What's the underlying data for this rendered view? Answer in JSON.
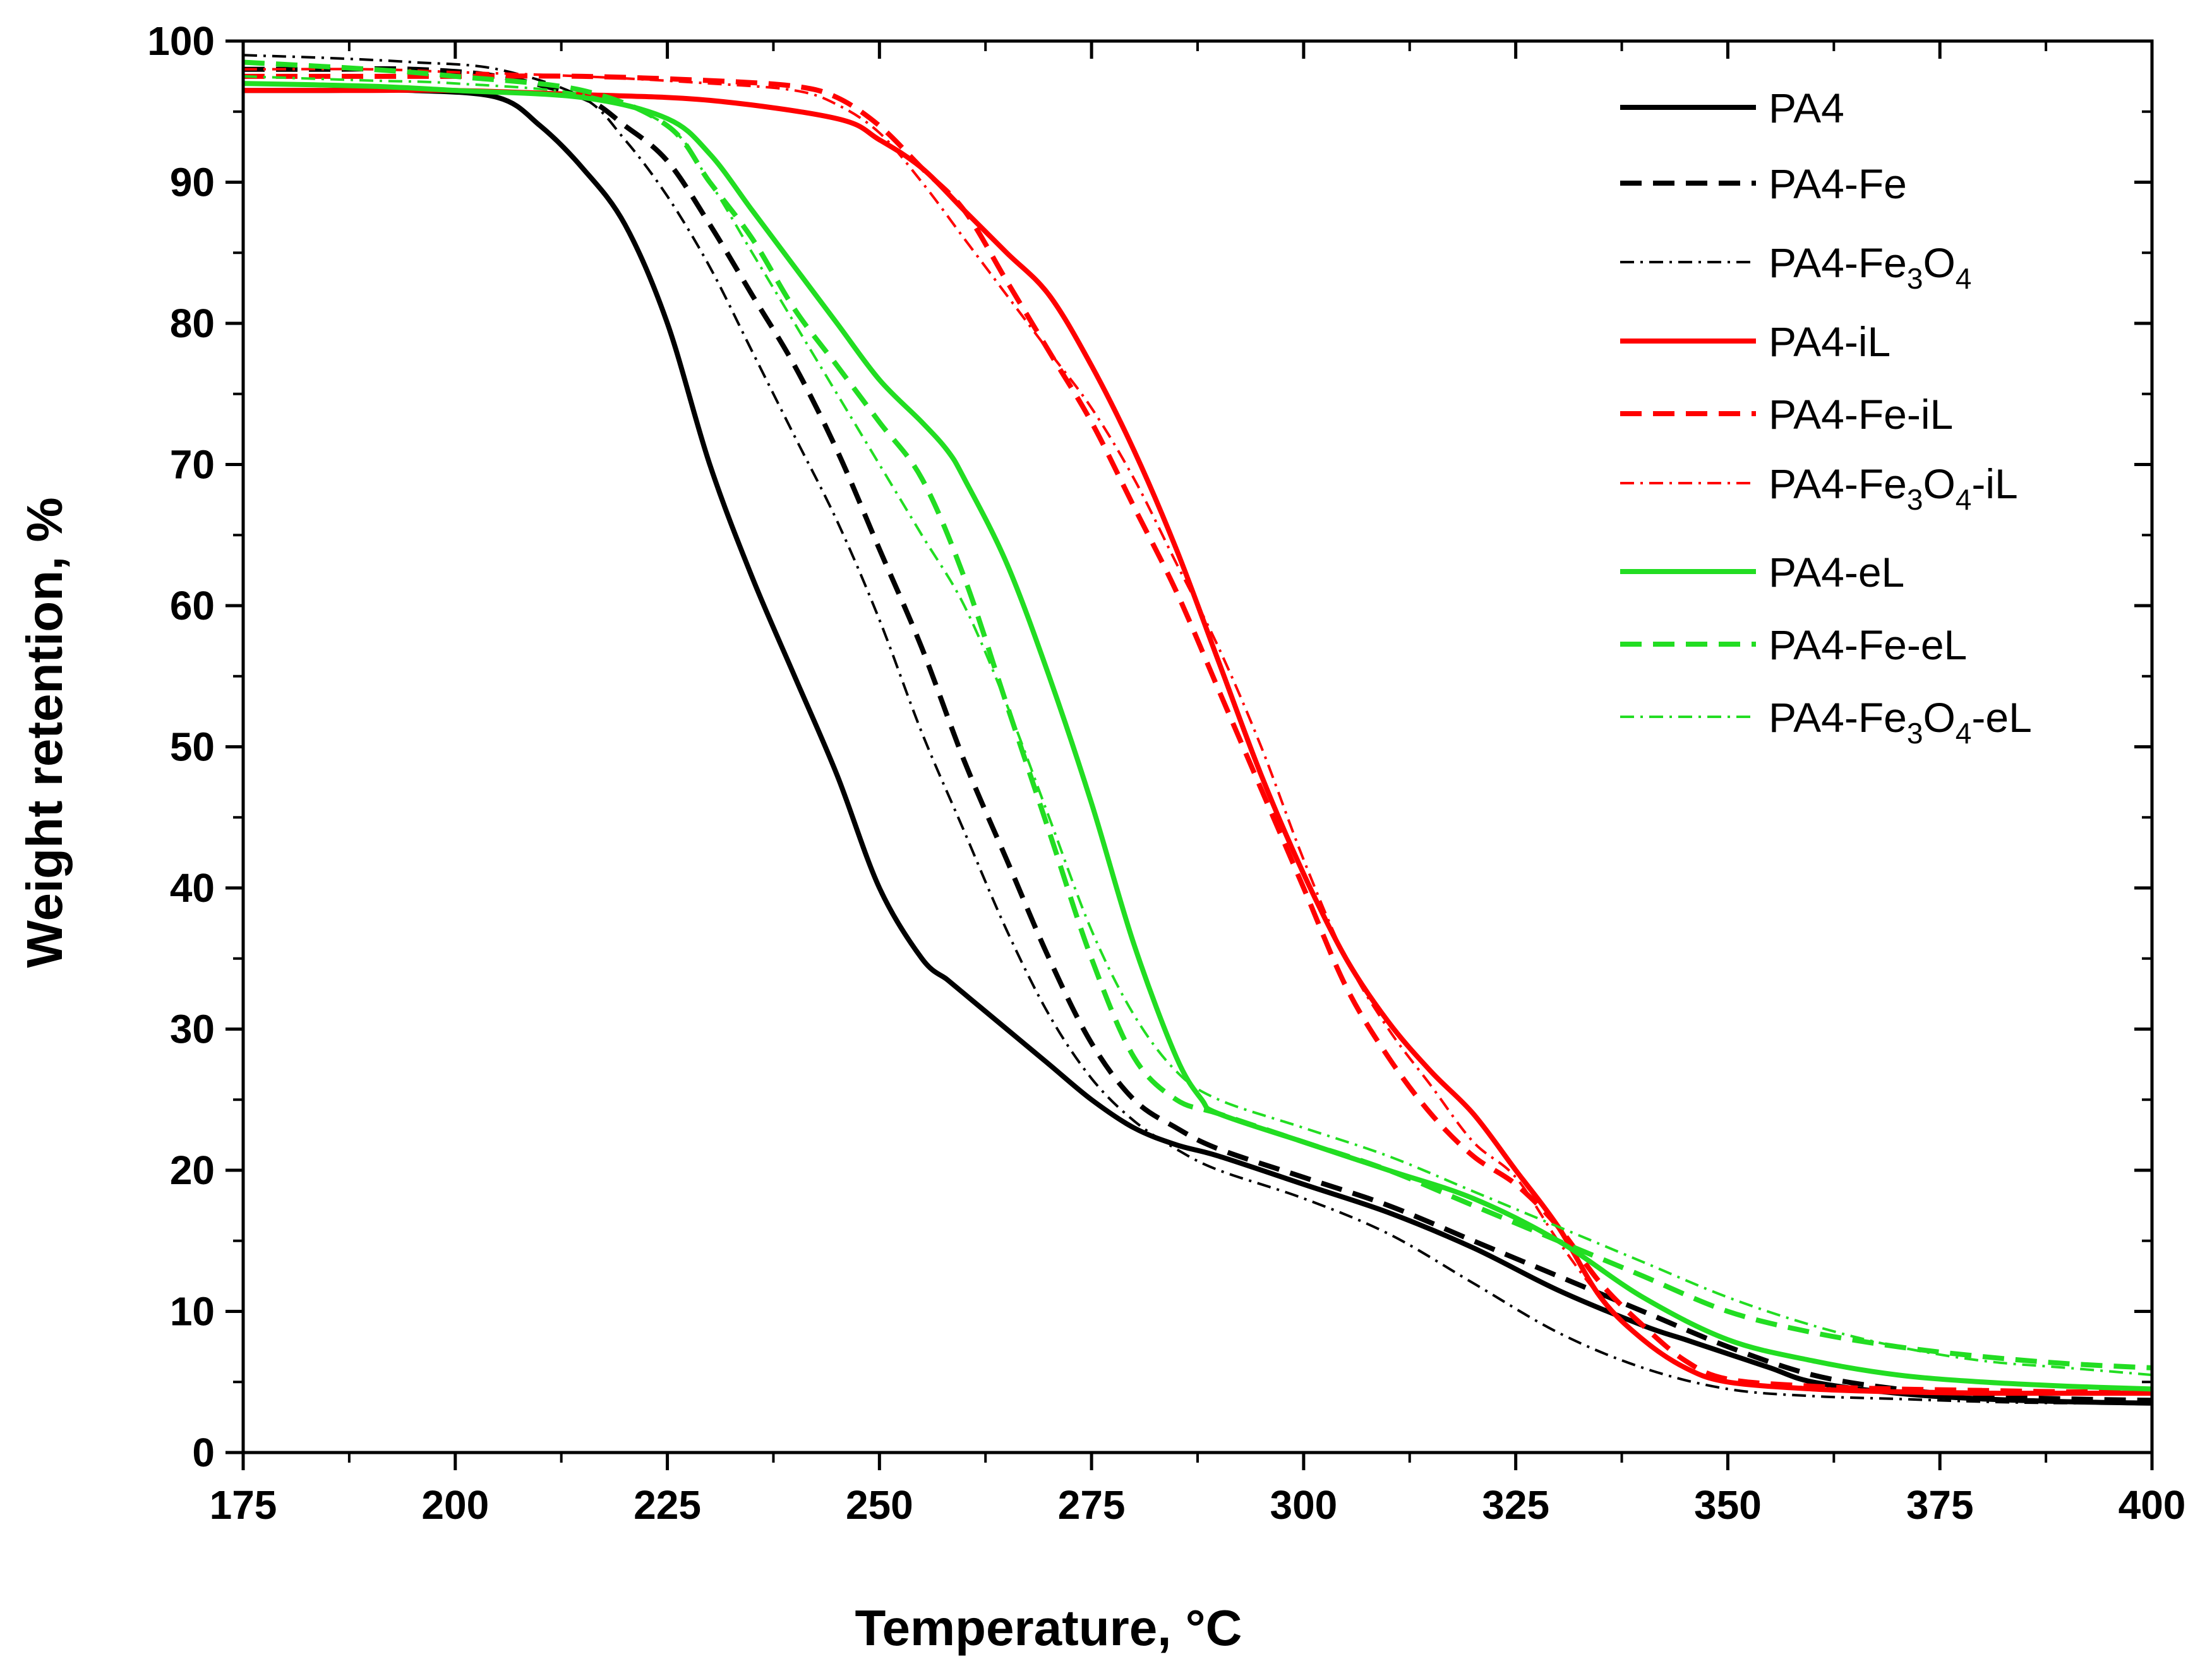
{
  "chart_data": {
    "type": "line",
    "title": "",
    "xlabel_text": "Temperature, ",
    "xlabel_unit": "°C",
    "ylabel": "Weight retention, %",
    "xlim": [
      175,
      400
    ],
    "ylim": [
      0,
      100
    ],
    "x_ticks": [
      175,
      200,
      225,
      250,
      275,
      300,
      325,
      350,
      375,
      400
    ],
    "y_ticks": [
      0,
      10,
      20,
      30,
      40,
      50,
      60,
      70,
      80,
      90,
      100
    ],
    "legend_position": "top-right",
    "colors": {
      "black": "#000000",
      "red": "#ff0000",
      "green": "#22dd22"
    },
    "series": [
      {
        "name": "PA4",
        "label": "PA4",
        "color": "black",
        "style": "solid",
        "width": 8,
        "x": [
          175,
          185,
          195,
          205,
          210,
          215,
          220,
          225,
          230,
          235,
          240,
          245,
          250,
          255,
          258,
          260,
          262,
          265,
          270,
          275,
          280,
          285,
          290,
          300,
          310,
          320,
          330,
          340,
          345,
          350,
          355,
          360,
          370,
          380,
          390,
          400
        ],
        "y": [
          96.5,
          96.5,
          96.5,
          96,
          94,
          91,
          87,
          80,
          70,
          62,
          55,
          48,
          40,
          35,
          33.5,
          32.5,
          31.5,
          30,
          27.5,
          25,
          23,
          21.8,
          21,
          19,
          17,
          14.5,
          11.5,
          9,
          8,
          7,
          6,
          5,
          4.2,
          3.8,
          3.6,
          3.5
        ]
      },
      {
        "name": "PA4-Fe",
        "label": "PA4-Fe",
        "color": "black",
        "style": "dash",
        "width": 8,
        "x": [
          175,
          185,
          195,
          205,
          215,
          220,
          225,
          230,
          235,
          240,
          245,
          250,
          255,
          260,
          265,
          270,
          275,
          280,
          285,
          290,
          300,
          310,
          320,
          330,
          340,
          350,
          360,
          370,
          380,
          390,
          400
        ],
        "y": [
          98,
          98,
          98,
          97.5,
          96,
          94,
          91.5,
          87,
          82,
          77,
          71,
          64,
          57,
          49,
          42,
          35,
          29,
          25,
          23,
          21.5,
          19.5,
          17.5,
          15,
          12.5,
          10,
          7.5,
          5.5,
          4.5,
          4,
          3.8,
          3.7
        ]
      },
      {
        "name": "PA4-Fe3O4",
        "label_pre": "PA4-Fe",
        "sub1": "3",
        "label_mid": "O",
        "sub2": "4",
        "label_post": "",
        "color": "black",
        "style": "dashdot",
        "width": 4,
        "x": [
          175,
          185,
          195,
          205,
          215,
          220,
          225,
          230,
          235,
          240,
          245,
          250,
          255,
          260,
          265,
          270,
          275,
          280,
          285,
          290,
          300,
          310,
          320,
          330,
          340,
          350,
          360,
          370,
          380,
          390,
          400
        ],
        "y": [
          99,
          98.8,
          98.5,
          98,
          96,
          93,
          89,
          84,
          78,
          72,
          66,
          59,
          51,
          44,
          37,
          31,
          26.5,
          23.5,
          21.5,
          20,
          18,
          15.5,
          12,
          8.5,
          6,
          4.5,
          4,
          3.8,
          3.6,
          3.5,
          3.5
        ]
      },
      {
        "name": "PA4-iL",
        "label": "PA4-iL",
        "color": "red",
        "style": "solid",
        "width": 8,
        "x": [
          175,
          190,
          200,
          215,
          230,
          245,
          250,
          255,
          260,
          265,
          270,
          275,
          280,
          285,
          290,
          295,
          300,
          305,
          310,
          315,
          320,
          325,
          330,
          335,
          340,
          345,
          350,
          360,
          370,
          380,
          390,
          400
        ],
        "y": [
          96.5,
          96.5,
          96.5,
          96.2,
          95.8,
          94.5,
          93,
          91,
          88,
          85,
          82,
          77,
          71,
          64,
          56,
          48,
          41,
          35,
          30.5,
          27,
          24,
          20,
          16,
          11,
          8,
          6,
          5,
          4.5,
          4.3,
          4.2,
          4.2,
          4.2
        ]
      },
      {
        "name": "PA4-Fe-iL",
        "label": "PA4-Fe-iL",
        "color": "red",
        "style": "dash",
        "width": 8,
        "x": [
          175,
          190,
          200,
          215,
          230,
          240,
          245,
          250,
          255,
          260,
          265,
          270,
          275,
          280,
          285,
          290,
          295,
          300,
          305,
          310,
          315,
          320,
          325,
          330,
          335,
          340,
          345,
          350,
          360,
          370,
          380,
          390,
          400
        ],
        "y": [
          97.5,
          97.5,
          97.5,
          97.5,
          97.2,
          96.8,
          96,
          94,
          91,
          88,
          83,
          78,
          73,
          67,
          61,
          54,
          47,
          40,
          33,
          28,
          24,
          21,
          19,
          16,
          12,
          9,
          6.5,
          5.2,
          4.7,
          4.5,
          4.4,
          4.3,
          4.3
        ]
      },
      {
        "name": "PA4-Fe3O4-iL",
        "label_pre": "PA4-Fe",
        "sub1": "3",
        "label_mid": "O",
        "sub2": "4",
        "label_post": "-iL",
        "color": "red",
        "style": "dashdot",
        "width": 4,
        "x": [
          175,
          190,
          200,
          215,
          230,
          240,
          245,
          250,
          255,
          260,
          265,
          270,
          275,
          280,
          285,
          290,
          295,
          300,
          305,
          310,
          315,
          320,
          325,
          330,
          335,
          340,
          345,
          350,
          360,
          370,
          380,
          390,
          400
        ],
        "y": [
          98,
          98,
          97.8,
          97.5,
          97,
          96.5,
          95.5,
          93.5,
          90,
          86,
          82,
          78,
          74,
          69,
          63,
          57,
          50,
          42,
          35,
          30,
          26,
          22,
          19.5,
          15,
          11,
          8,
          6,
          5,
          4.6,
          4.4,
          4.3,
          4.2,
          4.2
        ]
      },
      {
        "name": "PA4-eL",
        "label": "PA4-eL",
        "color": "green",
        "style": "solid",
        "width": 8,
        "x": [
          175,
          190,
          200,
          215,
          225,
          230,
          235,
          240,
          245,
          250,
          255,
          258,
          260,
          265,
          270,
          275,
          280,
          285,
          288,
          290,
          300,
          310,
          320,
          330,
          340,
          350,
          360,
          370,
          380,
          390,
          400
        ],
        "y": [
          97,
          96.8,
          96.5,
          96,
          94.5,
          92,
          88,
          84,
          80,
          76,
          73,
          71,
          69,
          63,
          55,
          46,
          36,
          28,
          25,
          24,
          22,
          20,
          18,
          15,
          11,
          8,
          6.5,
          5.5,
          5,
          4.7,
          4.5
        ]
      },
      {
        "name": "PA4-Fe-eL",
        "label": "PA4-Fe-eL",
        "color": "green",
        "style": "dash",
        "width": 8,
        "x": [
          175,
          190,
          200,
          215,
          225,
          230,
          235,
          240,
          245,
          250,
          255,
          260,
          265,
          270,
          275,
          280,
          285,
          290,
          300,
          310,
          320,
          330,
          340,
          350,
          360,
          370,
          380,
          390,
          400
        ],
        "y": [
          98.5,
          98,
          97.5,
          96.5,
          94,
          90,
          86,
          81,
          77,
          73,
          69,
          62,
          53,
          44,
          35,
          28,
          25,
          24,
          22,
          20,
          17.5,
          15,
          12.5,
          10,
          8.5,
          7.5,
          6.8,
          6.3,
          6
        ]
      },
      {
        "name": "PA4-Fe3O4-eL",
        "label_pre": "PA4-Fe",
        "sub1": "3",
        "label_mid": "O",
        "sub2": "4",
        "label_post": "-eL",
        "color": "green",
        "style": "dashdot",
        "width": 4,
        "x": [
          175,
          190,
          200,
          215,
          225,
          230,
          235,
          240,
          245,
          250,
          255,
          260,
          265,
          270,
          275,
          280,
          285,
          290,
          300,
          310,
          320,
          330,
          340,
          350,
          360,
          370,
          380,
          390,
          400
        ],
        "y": [
          97.5,
          97.2,
          97,
          96.2,
          94,
          90,
          85,
          80,
          75,
          70,
          65,
          60,
          53,
          45,
          37,
          31,
          27,
          25,
          23,
          21,
          18.5,
          16,
          13.5,
          11,
          9,
          7.5,
          6.5,
          6,
          5.5
        ]
      }
    ]
  }
}
